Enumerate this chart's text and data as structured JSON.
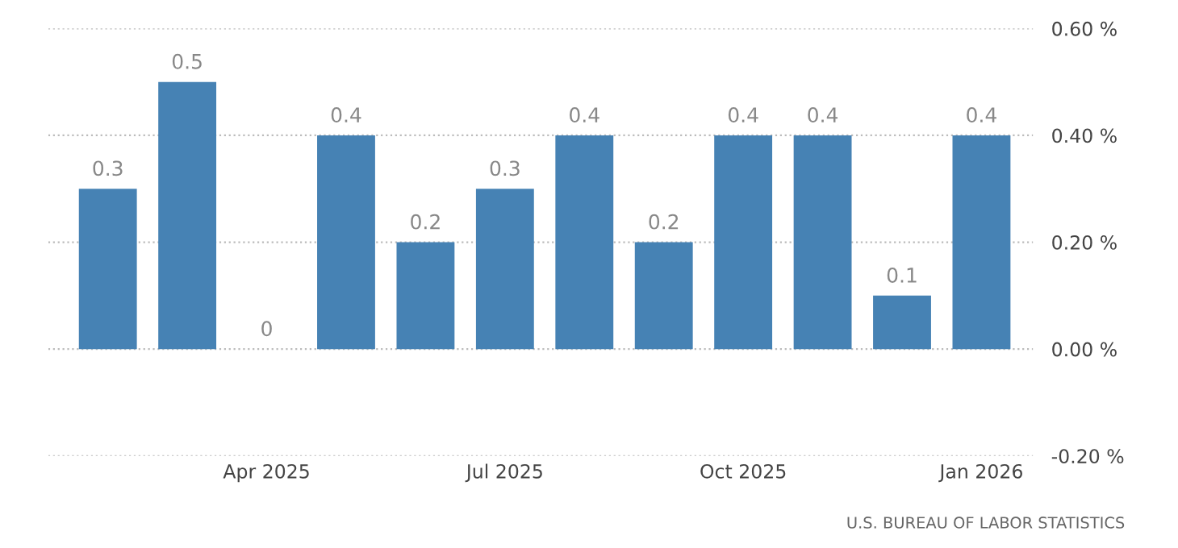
{
  "chart_data": {
    "type": "bar",
    "categories": [
      null,
      null,
      "Apr 2025",
      null,
      null,
      "Jul 2025",
      null,
      null,
      "Oct 2025",
      null,
      null,
      "Jan 2026"
    ],
    "values": [
      0.3,
      0.5,
      0,
      0.4,
      0.2,
      0.3,
      0.4,
      0.2,
      0.4,
      0.4,
      0.1,
      0.4
    ],
    "color": "#4682b4",
    "ylim": [
      -0.2,
      0.6
    ],
    "yticks": [
      {
        "value": -0.2,
        "label": "-0.20 %"
      },
      {
        "value": 0,
        "label": "0.00 %"
      },
      {
        "value": 0.2,
        "label": "0.20 %"
      },
      {
        "value": 0.4,
        "label": "0.40 %"
      },
      {
        "value": 0.6,
        "label": "0.60 %"
      }
    ],
    "grid": "y",
    "data_labels": true,
    "annotations": [
      "U.S. BUREAU OF LABOR STATISTICS"
    ]
  }
}
